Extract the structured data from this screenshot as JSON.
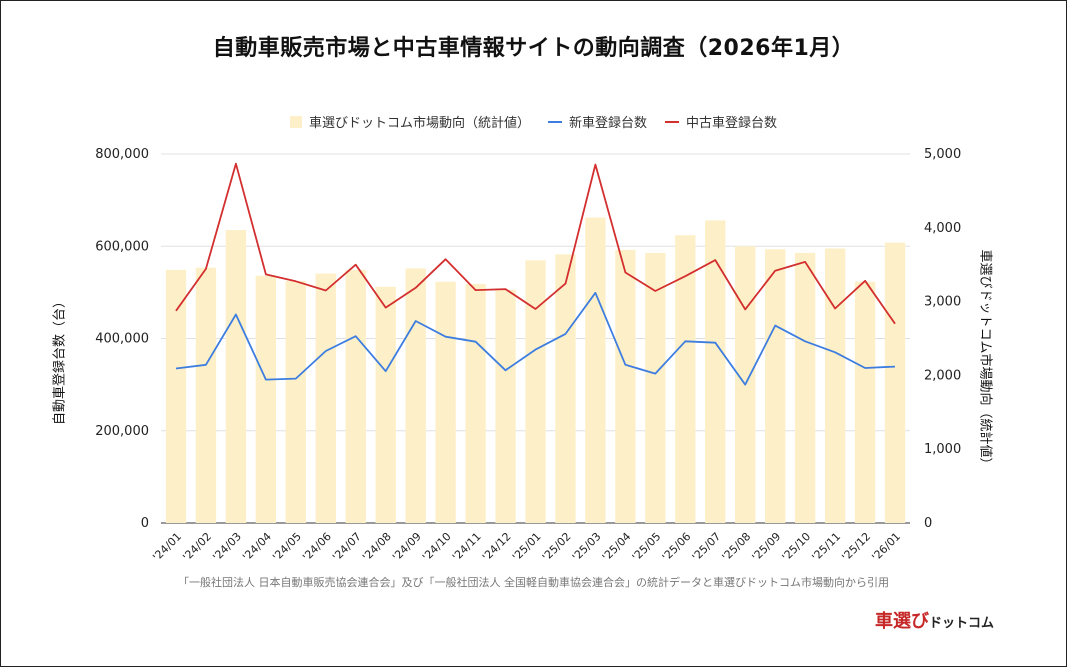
{
  "title": "自動車販売市場と中古車情報サイトの動向調査（2026年1月）",
  "source_note": "「一般社団法人 日本自動車販売協会連合会」及び「一般社団法人 全国軽自動車協会連合会」の統計データと車選びドットコム市場動向から引用",
  "logo": {
    "main": "車選び",
    "sub": "ドットコム"
  },
  "legend": {
    "bar": "車選びドットコム市場動向（統計値）",
    "line1": "新車登録台数",
    "line2": "中古車登録台数"
  },
  "chart_data": {
    "type": "bar+line",
    "categories": [
      "'24/01",
      "'24/02",
      "'24/03",
      "'24/04",
      "'24/05",
      "'24/06",
      "'24/07",
      "'24/08",
      "'24/09",
      "'24/10",
      "'24/11",
      "'24/12",
      "'25/01",
      "'25/02",
      "'25/03",
      "'25/04",
      "'25/05",
      "'25/06",
      "'25/07",
      "'25/08",
      "'25/09",
      "'25/10",
      "'25/11",
      "'25/12",
      "'26/01"
    ],
    "ylabel_left": "自動車登録台数（台）",
    "ylabel_right": "車選びドットコム市場動向（統計値）",
    "ylim_left": [
      0,
      800000
    ],
    "ylim_right": [
      0,
      5000
    ],
    "yticks_left": [
      "0",
      "200,000",
      "400,000",
      "600,000",
      "800,000"
    ],
    "yticks_right": [
      "0",
      "1,000",
      "2,000",
      "3,000",
      "4,000",
      "5,000"
    ],
    "colors": {
      "bar": "#fdf0c8",
      "line1": "#3d7de0",
      "line2": "#d32f2f"
    },
    "series": [
      {
        "name": "車選びドットコム市場動向（統計値）",
        "axis": "right",
        "kind": "bar",
        "values": [
          3430,
          3460,
          3970,
          3350,
          3280,
          3380,
          3430,
          3200,
          3450,
          3270,
          3240,
          3160,
          3560,
          3640,
          4140,
          3700,
          3660,
          3900,
          4100,
          3750,
          3710,
          3660,
          3720,
          3270,
          3800
        ]
      },
      {
        "name": "新車登録台数",
        "axis": "left",
        "kind": "line",
        "values": [
          335000,
          343000,
          452000,
          311000,
          313000,
          373000,
          405000,
          329000,
          438000,
          404000,
          393000,
          331000,
          376000,
          410000,
          499000,
          343000,
          324000,
          394000,
          391000,
          300000,
          428000,
          394000,
          370000,
          336000,
          339000
        ]
      },
      {
        "name": "中古車登録台数",
        "axis": "left",
        "kind": "line",
        "values": [
          460000,
          551000,
          779000,
          539000,
          524000,
          504000,
          560000,
          467000,
          510000,
          572000,
          505000,
          507000,
          464000,
          519000,
          777000,
          543000,
          503000,
          535000,
          570000,
          463000,
          547000,
          566000,
          465000,
          525000,
          432000
        ]
      }
    ],
    "grid": true,
    "legend_position": "top"
  }
}
